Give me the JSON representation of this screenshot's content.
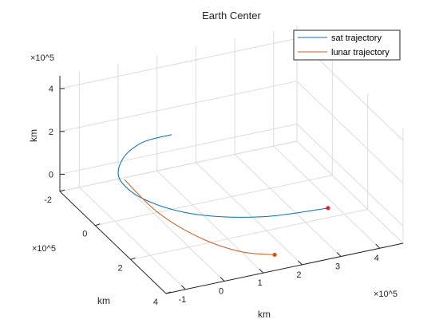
{
  "chart_data": {
    "type": "line3d",
    "title": "Earth Center",
    "axes": {
      "x": {
        "label": "km",
        "exponent": "×10^5",
        "ticks": [
          -1,
          0,
          1,
          2,
          3,
          4
        ],
        "range": [
          -1.5,
          4.6
        ]
      },
      "y": {
        "label": "km",
        "exponent": "×10^5",
        "ticks": [
          -2,
          0,
          2,
          4
        ],
        "range": [
          -2,
          4
        ]
      },
      "z": {
        "label": "km",
        "exponent": "×10^5",
        "ticks": [
          0,
          2,
          4
        ],
        "range": [
          -0.8,
          4.6
        ]
      }
    },
    "legend": {
      "placement": "top-right",
      "entries": [
        "sat trajectory",
        "lunar trajectory"
      ]
    },
    "grid": true,
    "series": [
      {
        "name": "sat trajectory",
        "color": "#0072BD",
        "points": [
          {
            "x": 2.85,
            "y": 3.6,
            "z": 1.2
          },
          {
            "x": 1.3,
            "y": 3.3,
            "z": 1.15
          },
          {
            "x": 0.0,
            "y": 2.4,
            "z": 1.05
          },
          {
            "x": -0.7,
            "y": 1.1,
            "z": 0.95
          },
          {
            "x": -0.75,
            "y": -0.25,
            "z": 0.85
          },
          {
            "x": -0.2,
            "y": -1.3,
            "z": 0.78
          },
          {
            "x": 0.6,
            "y": -1.95,
            "z": 0.72
          },
          {
            "x": 1.4,
            "y": -2.05,
            "z": 0.7
          }
        ]
      },
      {
        "name": "lunar trajectory",
        "color": "#D95319",
        "points": [
          {
            "x": -0.7,
            "y": -0.1,
            "z": 0.95
          },
          {
            "x": -0.45,
            "y": 1.2,
            "z": 0.38
          },
          {
            "x": 0.1,
            "y": 2.35,
            "z": -0.1
          },
          {
            "x": 0.8,
            "y": 3.15,
            "z": -0.4
          },
          {
            "x": 1.5,
            "y": 3.55,
            "z": -0.5
          }
        ]
      }
    ],
    "end_markers": [
      {
        "series": "sat trajectory",
        "x": 2.85,
        "y": 3.6,
        "z": 1.2
      },
      {
        "series": "lunar trajectory",
        "x": 1.5,
        "y": 3.55,
        "z": -0.5
      }
    ]
  }
}
